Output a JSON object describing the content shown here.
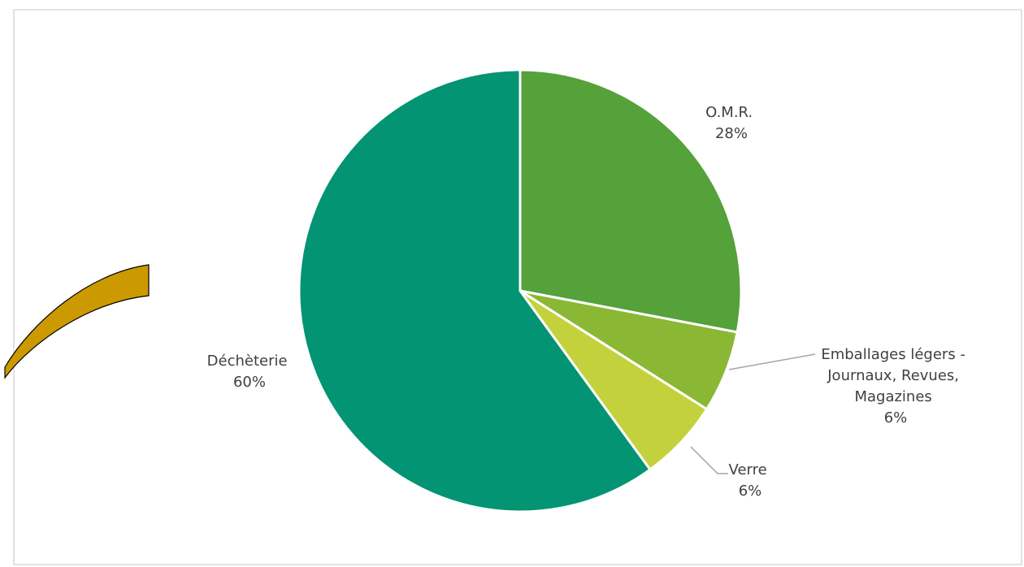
{
  "chart_data": {
    "type": "pie",
    "title": "",
    "slices": [
      {
        "name": "O.M.R.",
        "label": "28%",
        "value": 28,
        "color": "#55a13a"
      },
      {
        "name": "Emballages légers - Journaux, Revues, Magazines",
        "label": "6%",
        "value": 6,
        "color": "#8ab834"
      },
      {
        "name": "Verre",
        "label": "6%",
        "value": 6,
        "color": "#c3d23c"
      },
      {
        "name": "Déchèterie",
        "label": "60%",
        "value": 60,
        "color": "#039473"
      }
    ],
    "label_lines": {
      "omr": [
        "O.M.R.",
        "28%"
      ],
      "emballages": [
        "Emballages légers -",
        "Journaux, Revues,",
        "Magazines",
        "6%"
      ],
      "verre": [
        "Verre",
        "6%"
      ],
      "decheterie": [
        "Déchèterie",
        "60%"
      ]
    },
    "legend": "none"
  },
  "decoration": {
    "arc_color": "#cc9a00",
    "border_color": "#d9d9d9",
    "leader_color": "#a6a6a6"
  }
}
